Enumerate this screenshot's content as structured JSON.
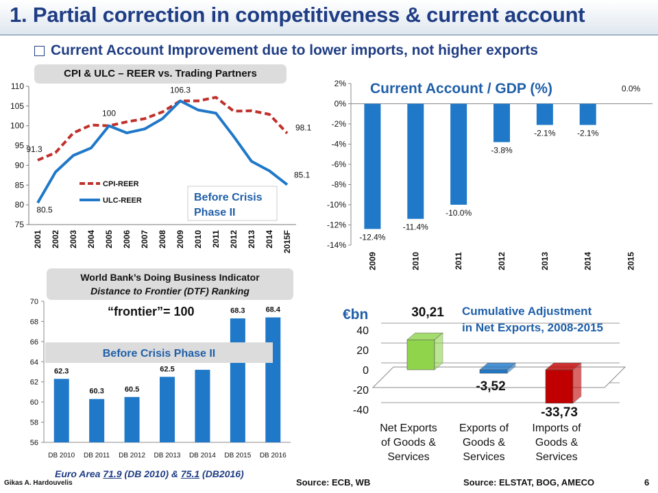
{
  "header": {
    "title": "1. Partial correction in competitiveness & current account",
    "subtitle": "Current Account Improvement due to lower imports, not higher exports"
  },
  "footer": {
    "author": "Gikas A. Hardouvelis",
    "source_left": "Source: ECB, WB",
    "source_right": "Source: ELSTAT, BOG, AMECO",
    "page": "6"
  },
  "colors": {
    "title": "#1f3d84",
    "cpi": "#c0302b",
    "ulc": "#1f78c8",
    "bar_blue": "#1f78c8",
    "label_blue": "#1f5fa8",
    "net_exports": "#8fd44a",
    "exports": "#1f78c8",
    "imports": "#c00000"
  },
  "chart_data": [
    {
      "type": "line",
      "title": "CPI & ULC – REER vs. Trading Partners",
      "categories": [
        "2001",
        "2002",
        "2003",
        "2004",
        "2005",
        "2006",
        "2007",
        "2008",
        "2009",
        "2010",
        "2011",
        "2012",
        "2013",
        "2014",
        "2015F"
      ],
      "series": [
        {
          "name": "CPI-REER",
          "style": "dashed",
          "values": [
            91.3,
            93.2,
            98.2,
            100.2,
            100,
            101,
            101.8,
            103.5,
            106.3,
            106.3,
            107.2,
            103.7,
            103.8,
            102.9,
            98.1
          ]
        },
        {
          "name": "ULC-REER",
          "style": "solid",
          "values": [
            80.5,
            88.3,
            92.5,
            94.4,
            100,
            98.2,
            99.2,
            101.8,
            106.3,
            104,
            103.2,
            97.3,
            91,
            88.6,
            85.1
          ]
        }
      ],
      "data_labels": [
        {
          "text": "91.3",
          "category": "2001"
        },
        {
          "text": "80.5",
          "category": "2001"
        },
        {
          "text": "100",
          "category": "2005"
        },
        {
          "text": "106.3",
          "category": "2009"
        },
        {
          "text": "98.1",
          "category": "2015F"
        },
        {
          "text": "85.1",
          "category": "2015F"
        }
      ],
      "ylim": [
        75,
        110
      ],
      "yticks": [
        75,
        80,
        85,
        90,
        95,
        100,
        105,
        110
      ],
      "annotation": "Before Crisis Phase II",
      "legend_position": "bottom-left"
    },
    {
      "type": "bar",
      "title": "Current Account  / GDP (%)",
      "categories": [
        "2009",
        "2010",
        "2011",
        "2012",
        "2013",
        "2014",
        "2015"
      ],
      "values": [
        -12.4,
        -11.4,
        -10.0,
        -3.8,
        -2.1,
        -2.1,
        0.0
      ],
      "value_labels": [
        "-12.4%",
        "-11.4%",
        "-10.0%",
        "-3.8%",
        "-2.1%",
        "-2.1%",
        "0.0%"
      ],
      "ylim": [
        -14,
        2
      ],
      "yticks": [
        "2%",
        "0%",
        "-2%",
        "-4%",
        "-6%",
        "-8%",
        "-10%",
        "-12%",
        "-14%"
      ]
    },
    {
      "type": "bar",
      "title": "World Bank’s Doing Business Indicator",
      "subtitle": "Distance to Frontier (DTF) Ranking",
      "note": "“frontier”= 100",
      "categories": [
        "DB 2010",
        "DB 2011",
        "DB 2012",
        "DB 2013",
        "DB 2014",
        "DB 2015",
        "DB 2016"
      ],
      "values": [
        62.3,
        60.3,
        60.5,
        62.5,
        63.2,
        68.3,
        68.4
      ],
      "value_labels": [
        "62.3",
        "60.3",
        "60.5",
        "62.5",
        "",
        "68.3",
        "68.4"
      ],
      "ylim": [
        56,
        70
      ],
      "yticks": [
        56,
        58,
        60,
        62,
        64,
        66,
        68,
        70
      ],
      "annotation": "Before Crisis Phase II",
      "footnote": {
        "prefix": "Euro Area ",
        "v1": "71.9",
        "mid": " (DB 2010) & ",
        "v2": "75.1",
        "suffix": " (DB2016)"
      }
    },
    {
      "type": "bar",
      "title": "Cumulative Adjustment in Net Exports, 2008-2015",
      "title_lines": [
        "Cumulative Adjustment",
        "in Net Exports, 2008-2015"
      ],
      "ylabel": "€bn",
      "categories": [
        [
          "Net Exports",
          "of Goods &",
          "Services"
        ],
        [
          "Exports of",
          "Goods &",
          "Services"
        ],
        [
          "Imports of",
          "Goods &",
          "Services"
        ]
      ],
      "values": [
        30.21,
        -3.52,
        -33.73
      ],
      "value_labels": [
        "30,21",
        "-3,52",
        "-33,73"
      ],
      "ylim": [
        -40,
        40
      ],
      "yticks": [
        40,
        20,
        0,
        -20,
        -40
      ]
    }
  ]
}
